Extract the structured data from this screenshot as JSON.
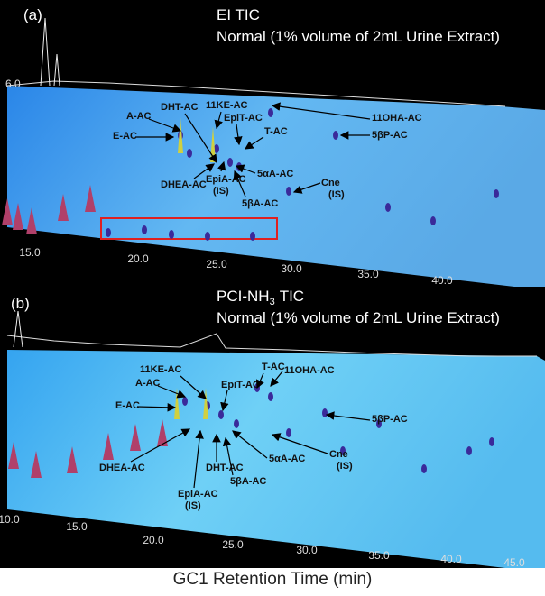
{
  "panels": [
    {
      "label": "(a)",
      "title": "EI TIC",
      "subtitle": "Normal (1% volume of 2mL Urine Extract)",
      "y_tick": "6.0",
      "x_ticks": [
        "15.0",
        "20.0",
        "25.0",
        "30.0",
        "35.0",
        "40.0"
      ],
      "annotations": [
        [
          "A-AC"
        ],
        [
          "E-AC"
        ],
        [
          "DHT-AC"
        ],
        [
          "11KE-AC"
        ],
        [
          "EpiT-AC"
        ],
        [
          "11OHA-AC"
        ],
        [
          "5βP-AC"
        ],
        [
          "T-AC"
        ],
        [
          "5αA-AC"
        ],
        [
          "DHEA-AC"
        ],
        [
          "EpiA-AC",
          "(IS)"
        ],
        [
          "5βA-AC"
        ],
        [
          "Cne",
          "(IS)"
        ]
      ]
    },
    {
      "label": "(b)",
      "title_prefix": "PCI-NH",
      "title_subscript": "3",
      "title_suffix": "TIC",
      "subtitle": "Normal (1% volume of 2mL Urine Extract)",
      "x_ticks": [
        "10.0",
        "15.0",
        "20.0",
        "25.0",
        "30.0",
        "35.0",
        "40.0",
        "45.0"
      ],
      "annotations": [
        [
          "11KE-AC"
        ],
        [
          "A-AC"
        ],
        [
          "E-AC"
        ],
        [
          "EpiT-AC"
        ],
        [
          "T-AC"
        ],
        [
          "11OHA-AC"
        ],
        [
          "5βP-AC"
        ],
        [
          "5αA-AC"
        ],
        [
          "Cne",
          "(IS)"
        ],
        [
          "DHEA-AC"
        ],
        [
          "DHT-AC"
        ],
        [
          "5βA-AC"
        ],
        [
          "EpiA-AC",
          "(IS)"
        ]
      ]
    }
  ],
  "x_axis_title": "GC1 Retention Time (min)"
}
